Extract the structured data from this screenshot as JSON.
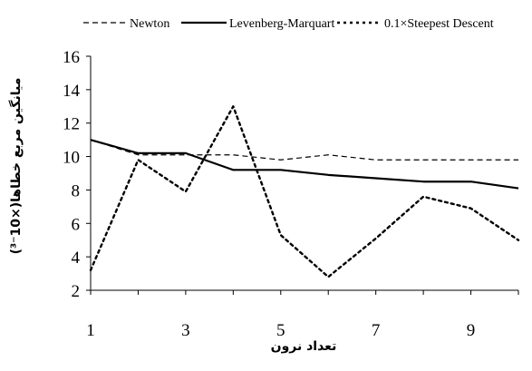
{
  "chart_data": {
    "type": "line",
    "title": "",
    "xlabel": "تعداد نرون",
    "ylabel": "میانگین مربع خطاها(×10⁻³)",
    "x": [
      1,
      2,
      3,
      4,
      5,
      6,
      7,
      8,
      9,
      10
    ],
    "xticks": [
      "1",
      "3",
      "5",
      "7",
      "9"
    ],
    "xlim": [
      1,
      10
    ],
    "yticks": [
      "2",
      "4",
      "6",
      "8",
      "10",
      "12",
      "14",
      "16"
    ],
    "ylim": [
      2,
      16
    ],
    "grid": false,
    "legend_position": "top",
    "series": [
      {
        "name": "Newton",
        "style": "dashed",
        "color": "#000000",
        "values": [
          11.0,
          10.1,
          10.1,
          10.1,
          9.8,
          10.1,
          9.8,
          9.8,
          9.8,
          9.8
        ]
      },
      {
        "name": "Levenberg-Marquart",
        "style": "solid",
        "color": "#000000",
        "values": [
          11.0,
          10.2,
          10.2,
          9.2,
          9.2,
          8.9,
          8.7,
          8.5,
          8.5,
          8.1
        ]
      },
      {
        "name": "0.1×Steepest Descent",
        "style": "dotted",
        "color": "#000000",
        "values": [
          3.2,
          9.8,
          7.9,
          13.0,
          5.3,
          2.8,
          5.1,
          7.6,
          6.9,
          5.0
        ]
      }
    ]
  }
}
